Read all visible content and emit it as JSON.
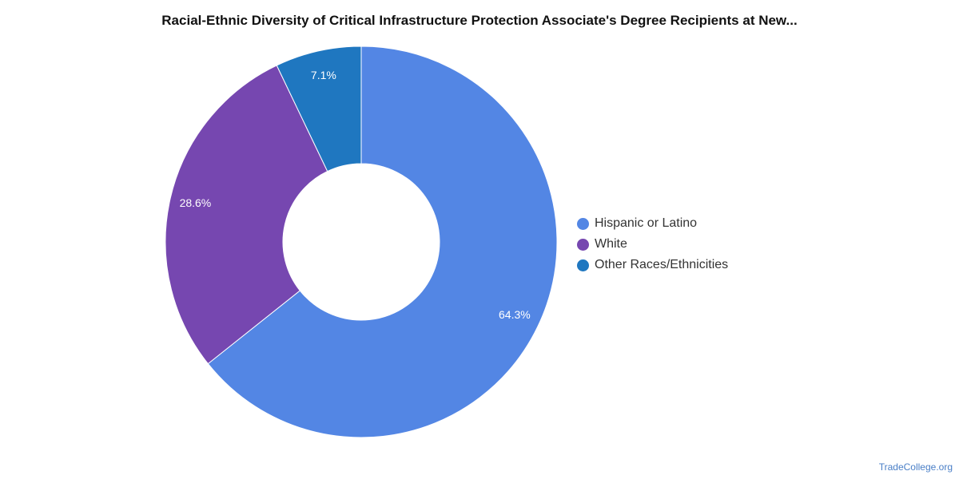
{
  "chart_data": {
    "type": "pie",
    "title": "Racial-Ethnic Diversity of Critical Infrastructure Protection Associate's Degree Recipients at New...",
    "donut": true,
    "slices": [
      {
        "label": "Hispanic or Latino",
        "value": 64.3,
        "display": "64.3%",
        "color": "#5386e4"
      },
      {
        "label": "White",
        "value": 28.6,
        "display": "28.6%",
        "color": "#7647b0"
      },
      {
        "label": "Other Races/Ethnicities",
        "value": 7.1,
        "display": "7.1%",
        "color": "#1f77c0"
      }
    ],
    "legend_position": "right"
  },
  "credit": "TradeCollege.org"
}
